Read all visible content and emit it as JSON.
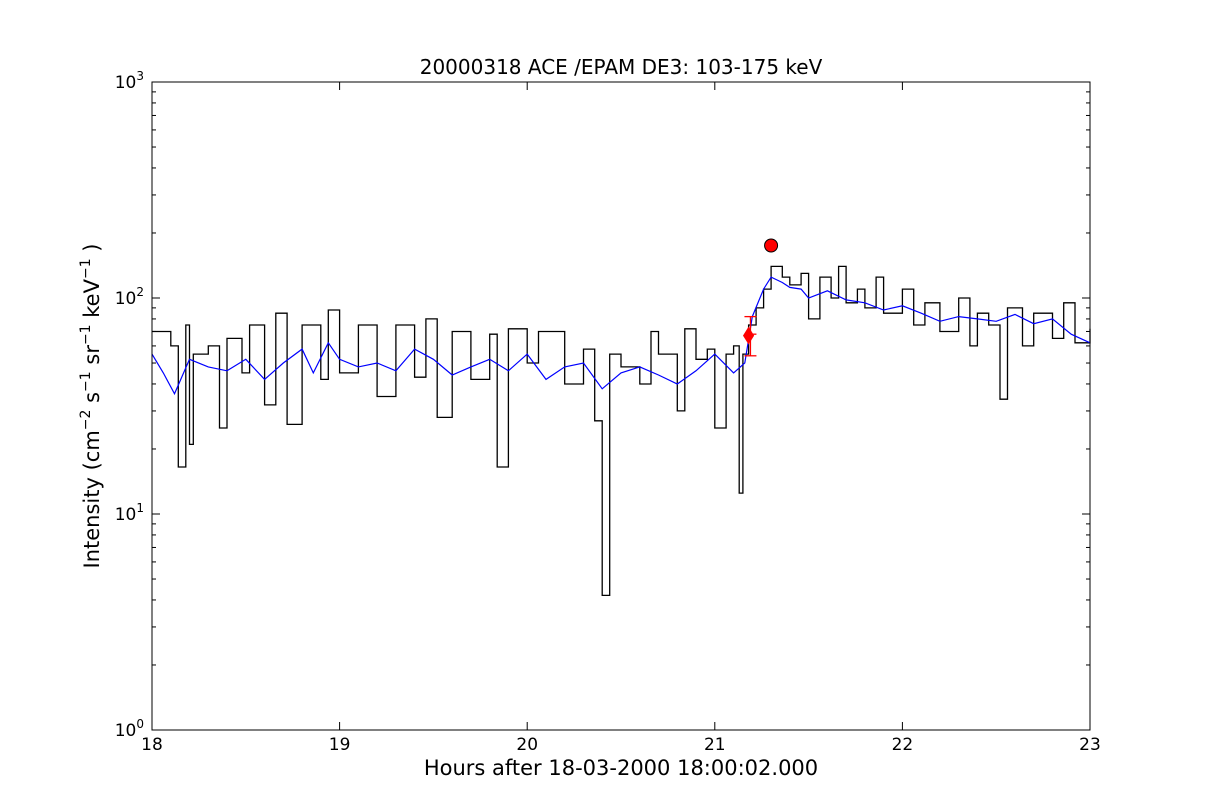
{
  "chart_data": {
    "type": "line",
    "title": "20000318 ACE /EPAM DE3: 103-175 keV",
    "xlabel": "Hours after 18-03-2000 18:00:02.000",
    "ylabel": "Intensity (cm⁻² s⁻¹ sr⁻¹ keV⁻¹ )",
    "xlim": [
      18,
      23
    ],
    "ylim": [
      1,
      1000
    ],
    "yscale": "log",
    "grid": false,
    "legend": "none",
    "x_ticks": [
      "18",
      "19",
      "20",
      "21",
      "22",
      "23"
    ],
    "y_ticks": [
      {
        "base": "10",
        "exp": "0"
      },
      {
        "base": "10",
        "exp": "1"
      },
      {
        "base": "10",
        "exp": "2"
      },
      {
        "base": "10",
        "exp": "3"
      }
    ],
    "colors": {
      "raw": "#000000",
      "smoothed": "#0000ff",
      "markers": "#ff0000"
    },
    "series": [
      {
        "color": "#000000",
        "style": "step",
        "points": [
          [
            18.0,
            70
          ],
          [
            18.1,
            60
          ],
          [
            18.14,
            16.5
          ],
          [
            18.18,
            75
          ],
          [
            18.2,
            21
          ],
          [
            18.22,
            55
          ],
          [
            18.3,
            60
          ],
          [
            18.36,
            25
          ],
          [
            18.4,
            65
          ],
          [
            18.48,
            45
          ],
          [
            18.52,
            75
          ],
          [
            18.6,
            32
          ],
          [
            18.66,
            85
          ],
          [
            18.72,
            26
          ],
          [
            18.8,
            75
          ],
          [
            18.9,
            42
          ],
          [
            18.94,
            88
          ],
          [
            19.0,
            45
          ],
          [
            19.1,
            75
          ],
          [
            19.2,
            35
          ],
          [
            19.3,
            75
          ],
          [
            19.4,
            43
          ],
          [
            19.46,
            80
          ],
          [
            19.52,
            28
          ],
          [
            19.6,
            70
          ],
          [
            19.7,
            42
          ],
          [
            19.8,
            68
          ],
          [
            19.84,
            16.5
          ],
          [
            19.9,
            72
          ],
          [
            20.0,
            50
          ],
          [
            20.06,
            70
          ],
          [
            20.2,
            40
          ],
          [
            20.3,
            58
          ],
          [
            20.36,
            27
          ],
          [
            20.4,
            4.2
          ],
          [
            20.44,
            55
          ],
          [
            20.5,
            48
          ],
          [
            20.6,
            40
          ],
          [
            20.66,
            70
          ],
          [
            20.7,
            55
          ],
          [
            20.8,
            30
          ],
          [
            20.84,
            72
          ],
          [
            20.9,
            52
          ],
          [
            20.96,
            58
          ],
          [
            21.0,
            25
          ],
          [
            21.06,
            55
          ],
          [
            21.1,
            60
          ],
          [
            21.13,
            12.5
          ],
          [
            21.15,
            55
          ],
          [
            21.18,
            75
          ],
          [
            21.22,
            90
          ],
          [
            21.26,
            110
          ],
          [
            21.3,
            140
          ],
          [
            21.36,
            125
          ],
          [
            21.4,
            115
          ],
          [
            21.46,
            130
          ],
          [
            21.5,
            80
          ],
          [
            21.56,
            125
          ],
          [
            21.62,
            100
          ],
          [
            21.66,
            140
          ],
          [
            21.7,
            95
          ],
          [
            21.76,
            110
          ],
          [
            21.8,
            90
          ],
          [
            21.86,
            125
          ],
          [
            21.9,
            85
          ],
          [
            22.0,
            110
          ],
          [
            22.06,
            75
          ],
          [
            22.12,
            95
          ],
          [
            22.2,
            70
          ],
          [
            22.3,
            100
          ],
          [
            22.36,
            60
          ],
          [
            22.4,
            85
          ],
          [
            22.46,
            75
          ],
          [
            22.52,
            34
          ],
          [
            22.56,
            90
          ],
          [
            22.64,
            60
          ],
          [
            22.7,
            85
          ],
          [
            22.8,
            65
          ],
          [
            22.86,
            95
          ],
          [
            22.92,
            62
          ],
          [
            23.0,
            72
          ]
        ]
      },
      {
        "color": "#0000ff",
        "style": "line",
        "points": [
          [
            18.0,
            55
          ],
          [
            18.06,
            45
          ],
          [
            18.12,
            36
          ],
          [
            18.2,
            52
          ],
          [
            18.3,
            48
          ],
          [
            18.4,
            46
          ],
          [
            18.5,
            52
          ],
          [
            18.6,
            42
          ],
          [
            18.7,
            50
          ],
          [
            18.8,
            58
          ],
          [
            18.86,
            45
          ],
          [
            18.94,
            62
          ],
          [
            19.0,
            52
          ],
          [
            19.1,
            48
          ],
          [
            19.2,
            50
          ],
          [
            19.3,
            46
          ],
          [
            19.4,
            58
          ],
          [
            19.5,
            52
          ],
          [
            19.6,
            44
          ],
          [
            19.7,
            48
          ],
          [
            19.8,
            52
          ],
          [
            19.9,
            46
          ],
          [
            20.0,
            55
          ],
          [
            20.1,
            42
          ],
          [
            20.2,
            48
          ],
          [
            20.3,
            50
          ],
          [
            20.4,
            38
          ],
          [
            20.5,
            45
          ],
          [
            20.6,
            48
          ],
          [
            20.7,
            44
          ],
          [
            20.8,
            40
          ],
          [
            20.9,
            46
          ],
          [
            21.0,
            55
          ],
          [
            21.1,
            45
          ],
          [
            21.16,
            50
          ],
          [
            21.2,
            82
          ],
          [
            21.26,
            110
          ],
          [
            21.3,
            125
          ],
          [
            21.36,
            118
          ],
          [
            21.4,
            112
          ],
          [
            21.46,
            110
          ],
          [
            21.5,
            100
          ],
          [
            21.6,
            108
          ],
          [
            21.7,
            98
          ],
          [
            21.8,
            95
          ],
          [
            21.9,
            88
          ],
          [
            22.0,
            92
          ],
          [
            22.1,
            85
          ],
          [
            22.2,
            78
          ],
          [
            22.3,
            82
          ],
          [
            22.4,
            80
          ],
          [
            22.5,
            78
          ],
          [
            22.6,
            84
          ],
          [
            22.7,
            76
          ],
          [
            22.8,
            80
          ],
          [
            22.9,
            68
          ],
          [
            23.0,
            62
          ]
        ]
      }
    ],
    "markers": [
      {
        "shape": "circle",
        "x": 21.3,
        "y": 175
      },
      {
        "shape": "diamond",
        "x": 21.18,
        "y": 67
      },
      {
        "shape": "errorbar",
        "x": 21.19,
        "y": 68,
        "low": 54,
        "high": 82
      }
    ]
  }
}
